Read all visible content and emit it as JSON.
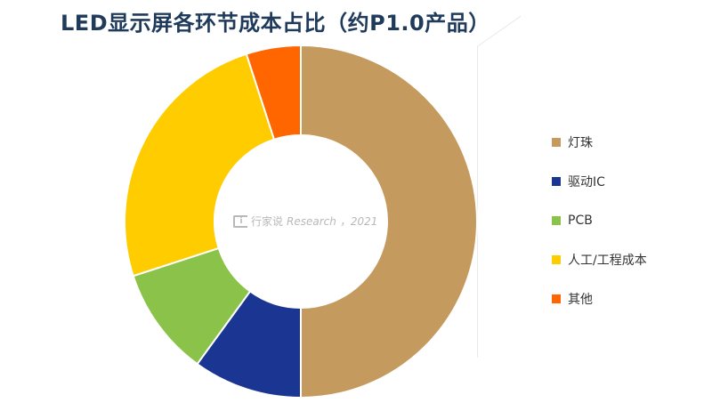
{
  "title": "LED显示屏各环节成本占比（约P1.0产品）",
  "watermark": {
    "brand": "行家说",
    "en": "Research",
    "year": "，2021"
  },
  "chart_data": {
    "type": "pie",
    "donut": true,
    "title": "LED显示屏各环节成本占比（约P1.0产品）",
    "legend_position": "right",
    "slices": [
      {
        "label": "灯珠",
        "value": 50,
        "color": "#C49A5E"
      },
      {
        "label": "驱动IC",
        "value": 10,
        "color": "#1B3593"
      },
      {
        "label": "PCB",
        "value": 10,
        "color": "#8BC34A"
      },
      {
        "label": "人工/工程成本",
        "value": 25,
        "color": "#FFCC00"
      },
      {
        "label": "其他",
        "value": 5,
        "color": "#FF6600"
      }
    ]
  }
}
